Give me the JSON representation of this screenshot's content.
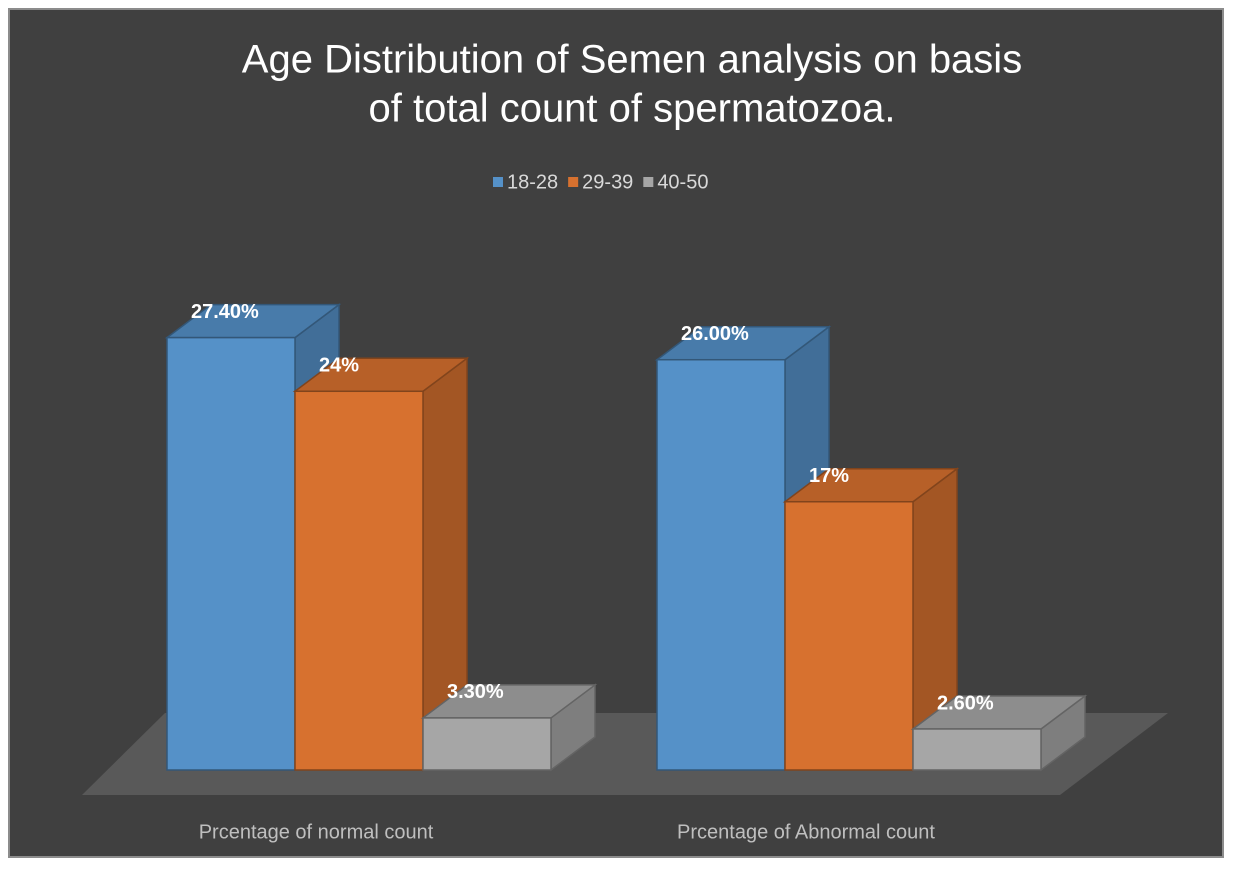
{
  "chart_data": {
    "type": "bar3d",
    "title": "Age Distribution of Semen analysis on basis",
    "title_line2": "of total count of spermatozoa.",
    "categories": [
      "Prcentage of normal count",
      "Prcentage of Abnormal count"
    ],
    "series": [
      {
        "name": "18-28",
        "color": "#5591c8",
        "values": [
          27.4,
          26.0
        ],
        "value_labels": [
          "27.40%",
          "26.00%"
        ]
      },
      {
        "name": "29-39",
        "color": "#d7712f",
        "values": [
          24,
          17
        ],
        "value_labels": [
          "24%",
          "17%"
        ]
      },
      {
        "name": "40-50",
        "color": "#a6a6a6",
        "values": [
          3.3,
          2.6
        ],
        "value_labels": [
          "3.30%",
          "2.60%"
        ]
      }
    ],
    "legend": "top"
  }
}
